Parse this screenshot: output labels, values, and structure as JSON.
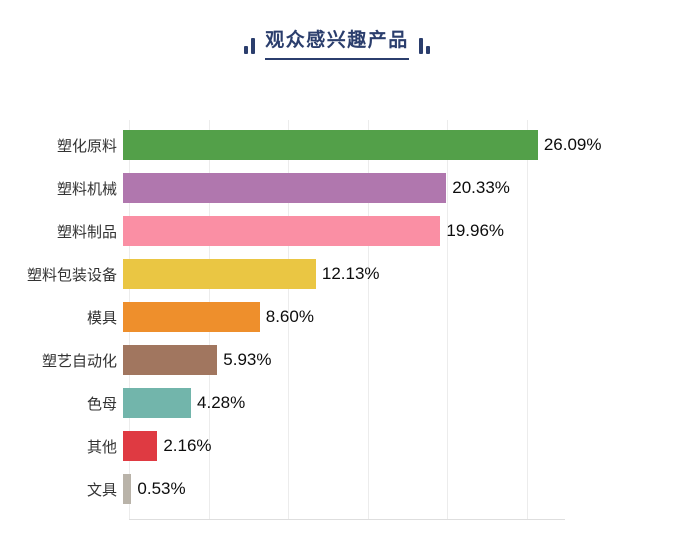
{
  "header": {
    "title": "观众感兴趣产品",
    "accent_color": "#2b3e6d"
  },
  "chart_data": {
    "type": "bar",
    "orientation": "horizontal",
    "title": "观众感兴趣产品",
    "categories": [
      "塑化原料",
      "塑料机械",
      "塑料制品",
      "塑料包装设备",
      "模具",
      "塑艺自动化",
      "色母",
      "其他",
      "文具"
    ],
    "values": [
      26.09,
      20.33,
      19.96,
      12.13,
      8.6,
      5.93,
      4.28,
      2.16,
      0.53
    ],
    "value_labels": [
      "26.09%",
      "20.33%",
      "19.96%",
      "12.13%",
      "8.60%",
      "5.93%",
      "4.28%",
      "2.16%",
      "0.53%"
    ],
    "bar_colors": [
      "#53a049",
      "#b077ae",
      "#fa8fa4",
      "#eac643",
      "#ee8f2c",
      "#a1765f",
      "#72b5ab",
      "#df3a42",
      "#b9b3a9"
    ],
    "xlabel": "",
    "ylabel": "",
    "xlim": [
      0,
      27
    ],
    "grid_step": 5,
    "grid": true,
    "legend_position": "none"
  }
}
